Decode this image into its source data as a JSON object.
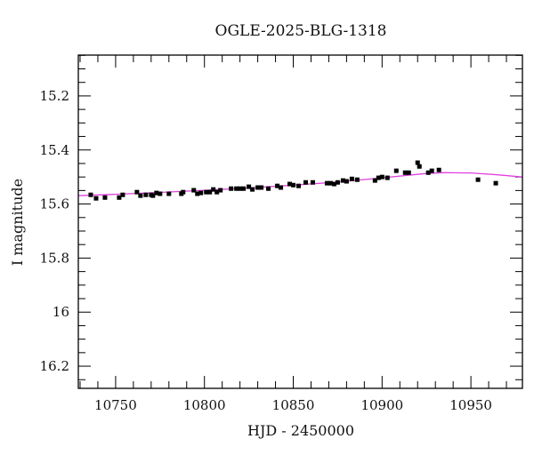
{
  "chart_data": {
    "type": "scatter",
    "title": "OGLE-2025-BLG-1318",
    "xlabel": "HJD - 2450000",
    "ylabel": "I magnitude",
    "xlim": [
      10729,
      10979
    ],
    "ylim": [
      16.282,
      15.049
    ],
    "y_inverted": true,
    "grid": false,
    "legend": null,
    "x_ticks": [
      10750,
      10800,
      10850,
      10900,
      10950
    ],
    "x_tick_labels": [
      "10750",
      "10800",
      "10850",
      "10900",
      "10950"
    ],
    "x_minor_step": 10,
    "y_ticks": [
      15.2,
      15.4,
      15.6,
      15.8,
      16.0,
      16.2
    ],
    "y_tick_labels": [
      "15.2",
      "15.4",
      "15.6",
      "15.8",
      "16",
      "16.2"
    ],
    "y_minor_step": 0.05,
    "series": [
      {
        "name": "OGLE I-band photometry",
        "type": "scatter",
        "color": "#000000",
        "marker": "square",
        "x": [
          10736,
          10739,
          10744,
          10752,
          10754,
          10762,
          10764,
          10767,
          10770,
          10771,
          10773,
          10775,
          10780,
          10787,
          10788,
          10794,
          10796,
          10798,
          10801,
          10803,
          10805,
          10807,
          10809,
          10815,
          10818,
          10820,
          10822,
          10825,
          10827,
          10830,
          10832,
          10836,
          10841,
          10843,
          10848,
          10850,
          10853,
          10857,
          10861,
          10869,
          10871,
          10873,
          10875,
          10878,
          10880,
          10883,
          10886,
          10896,
          10898,
          10900,
          10903,
          10908,
          10913,
          10915,
          10920,
          10921,
          10926,
          10928,
          10932,
          10954,
          10964
        ],
        "y": [
          15.566,
          15.579,
          15.576,
          15.576,
          15.566,
          15.556,
          15.569,
          15.566,
          15.566,
          15.569,
          15.559,
          15.562,
          15.562,
          15.562,
          15.556,
          15.549,
          15.562,
          15.559,
          15.556,
          15.556,
          15.546,
          15.556,
          15.549,
          15.543,
          15.543,
          15.543,
          15.543,
          15.536,
          15.546,
          15.539,
          15.539,
          15.543,
          15.533,
          15.539,
          15.526,
          15.53,
          15.533,
          15.52,
          15.52,
          15.523,
          15.523,
          15.526,
          15.52,
          15.513,
          15.516,
          15.507,
          15.51,
          15.513,
          15.503,
          15.5,
          15.503,
          15.477,
          15.484,
          15.484,
          15.447,
          15.461,
          15.484,
          15.477,
          15.474,
          15.51,
          15.523
        ]
      },
      {
        "name": "model fit",
        "type": "line",
        "color": "#e040e0",
        "x": [
          10729,
          10750,
          10775,
          10800,
          10825,
          10850,
          10875,
          10900,
          10925,
          10935,
          10950,
          10965,
          10979
        ],
        "y": [
          15.569,
          15.564,
          15.557,
          15.549,
          15.541,
          15.53,
          15.519,
          15.503,
          15.487,
          15.484,
          15.485,
          15.492,
          15.5
        ]
      }
    ]
  },
  "labels": {
    "title": "OGLE-2025-BLG-1318",
    "xlabel": "HJD - 2450000",
    "ylabel": "I magnitude"
  }
}
